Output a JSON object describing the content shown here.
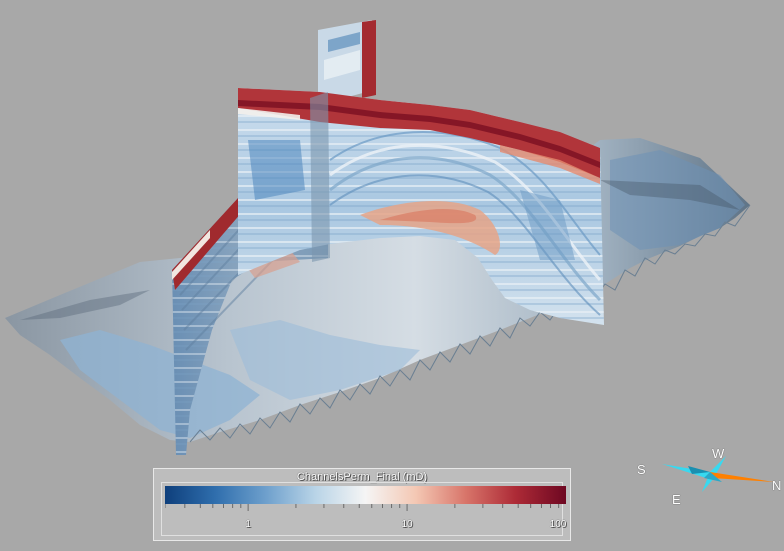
{
  "legend": {
    "title": "ChannelsPerm_Final (mD)",
    "colormap": [
      "#0e3f7c",
      "#2f6ead",
      "#6d9fcc",
      "#b9d4e7",
      "#f5f5f5",
      "#f4c8b4",
      "#d8756a",
      "#ad2a36",
      "#6e0822"
    ],
    "ticks": [
      {
        "label": "1",
        "value": 1
      },
      {
        "label": "10",
        "value": 10
      },
      {
        "label": "100",
        "value": 100
      }
    ],
    "scale": "log",
    "range": [
      0.3,
      100
    ]
  },
  "compass": {
    "labels": {
      "west": "W",
      "south": "S",
      "east": "E",
      "north": "N"
    },
    "colors": {
      "primary": "#38d9f0",
      "north_arrow": "#ff8000"
    }
  }
}
